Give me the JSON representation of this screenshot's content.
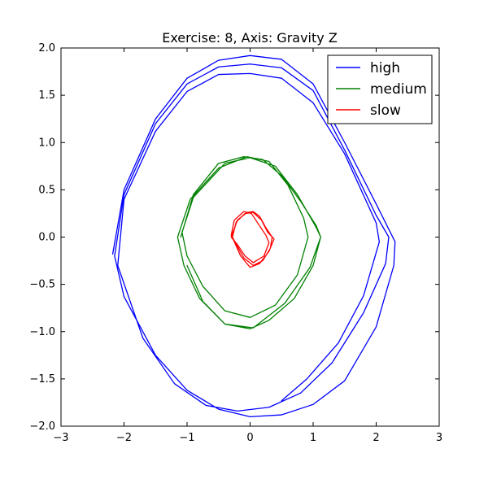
{
  "chart_data": {
    "type": "line",
    "title": "Exercise: 8, Axis: Gravity Z",
    "xlabel": "",
    "ylabel": "",
    "xlim": [
      -3,
      3
    ],
    "ylim": [
      -2,
      2
    ],
    "x_ticks": [
      -3,
      -2,
      -1,
      0,
      1,
      2,
      3
    ],
    "x_tick_labels": [
      "−3",
      "−2",
      "−1",
      "0",
      "1",
      "2",
      "3"
    ],
    "y_ticks": [
      -2,
      -1.5,
      -1,
      -0.5,
      0,
      0.5,
      1,
      1.5,
      2
    ],
    "y_tick_labels": [
      "−2.0",
      "−1.5",
      "−1.0",
      "−0.5",
      "0.0",
      "0.5",
      "1.0",
      "1.5",
      "2.0"
    ],
    "grid": false,
    "legend_position": "top-right",
    "series": [
      {
        "name": "high",
        "color": "#0000ff",
        "x": [
          -2.18,
          -2.0,
          -1.5,
          -1.0,
          -0.5,
          0.0,
          0.5,
          1.0,
          1.5,
          2.0,
          2.3,
          2.28,
          2.0,
          1.5,
          1.0,
          0.5,
          0.0,
          -0.5,
          -1.0,
          -1.5,
          -2.0,
          -2.15,
          -2.0,
          -1.5,
          -1.0,
          -0.5,
          0.0,
          0.5,
          1.0,
          1.5,
          2.0,
          2.2,
          2.15,
          1.8,
          1.3,
          0.8,
          0.3,
          -0.2,
          -0.7,
          -1.2,
          -1.7,
          -2.1,
          -2.0,
          -1.5,
          -1.0,
          -0.5,
          0.0,
          0.5,
          1.0,
          1.5,
          2.0,
          2.05,
          1.8,
          1.4,
          0.9,
          0.5
        ],
        "y": [
          -0.18,
          0.5,
          1.25,
          1.68,
          1.87,
          1.92,
          1.88,
          1.62,
          1.0,
          0.35,
          -0.05,
          -0.3,
          -0.95,
          -1.52,
          -1.77,
          -1.88,
          -1.9,
          -1.82,
          -1.62,
          -1.25,
          -0.63,
          -0.2,
          0.45,
          1.2,
          1.62,
          1.8,
          1.83,
          1.79,
          1.55,
          0.92,
          0.23,
          0.0,
          -0.28,
          -0.8,
          -1.33,
          -1.65,
          -1.8,
          -1.84,
          -1.78,
          -1.55,
          -1.07,
          -0.3,
          0.4,
          1.12,
          1.54,
          1.72,
          1.73,
          1.68,
          1.42,
          0.88,
          0.15,
          -0.05,
          -0.62,
          -1.12,
          -1.5,
          -1.73
        ]
      },
      {
        "name": "medium",
        "color": "#008000",
        "x": [
          -1.1,
          -0.9,
          -0.5,
          -0.1,
          0.2,
          0.5,
          0.8,
          1.05,
          1.12,
          1.0,
          0.7,
          0.3,
          0.0,
          -0.4,
          -0.8,
          -1.05,
          -1.15,
          -0.95,
          -0.5,
          -0.05,
          0.3,
          0.6,
          0.85,
          0.92,
          0.75,
          0.4,
          0.0,
          -0.4,
          -0.75,
          -1.0,
          -1.08,
          -0.9,
          -0.4,
          0.0,
          0.4,
          0.75,
          1.05,
          1.12,
          0.95,
          0.55,
          0.05,
          -0.4,
          -0.75,
          -1.0
        ],
        "y": [
          0.0,
          0.45,
          0.78,
          0.85,
          0.82,
          0.65,
          0.38,
          0.12,
          0.0,
          -0.3,
          -0.65,
          -0.88,
          -0.97,
          -0.92,
          -0.65,
          -0.3,
          0.0,
          0.4,
          0.73,
          0.85,
          0.8,
          0.55,
          0.2,
          0.0,
          -0.4,
          -0.72,
          -0.85,
          -0.78,
          -0.52,
          -0.2,
          0.05,
          0.42,
          0.78,
          0.84,
          0.75,
          0.45,
          0.1,
          0.0,
          -0.32,
          -0.7,
          -0.96,
          -0.92,
          -0.68,
          -0.3
        ]
      },
      {
        "name": "slow",
        "color": "#ff0000",
        "x": [
          -0.3,
          -0.2,
          -0.05,
          0.05,
          0.15,
          0.25,
          0.35,
          0.32,
          0.2,
          0.05,
          -0.1,
          -0.2,
          -0.28,
          -0.22,
          -0.08,
          0.05,
          0.18,
          0.28,
          0.38,
          0.3,
          0.15,
          0.0,
          -0.15,
          -0.25,
          -0.3,
          -0.25,
          -0.1,
          0.02,
          0.15,
          0.25,
          0.3,
          0.22,
          0.05,
          -0.08,
          -0.2,
          -0.3
        ],
        "y": [
          0.0,
          0.18,
          0.26,
          0.27,
          0.22,
          0.1,
          0.0,
          -0.12,
          -0.25,
          -0.3,
          -0.22,
          -0.1,
          0.0,
          0.16,
          0.25,
          0.26,
          0.18,
          0.05,
          -0.02,
          -0.15,
          -0.28,
          -0.32,
          -0.2,
          -0.05,
          0.02,
          0.18,
          0.27,
          0.25,
          0.12,
          0.02,
          -0.06,
          -0.2,
          -0.27,
          -0.2,
          -0.08,
          0.0
        ]
      }
    ]
  }
}
